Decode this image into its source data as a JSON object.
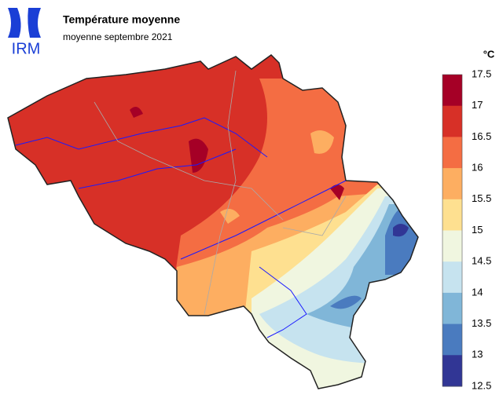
{
  "header": {
    "logo": "IRM",
    "title": "Température moyenne",
    "subtitle": "moyenne septembre 2021"
  },
  "legend": {
    "unit": "°C",
    "labels": [
      17.5,
      17,
      16.5,
      16,
      15.5,
      15,
      14.5,
      14,
      13.5,
      13,
      12.5
    ],
    "colors": [
      "#a50026",
      "#d73027",
      "#f46d43",
      "#fdae61",
      "#fee090",
      "#f0f6e0",
      "#c6e3ef",
      "#80b6d8",
      "#4a7bbf",
      "#313695"
    ]
  }
}
